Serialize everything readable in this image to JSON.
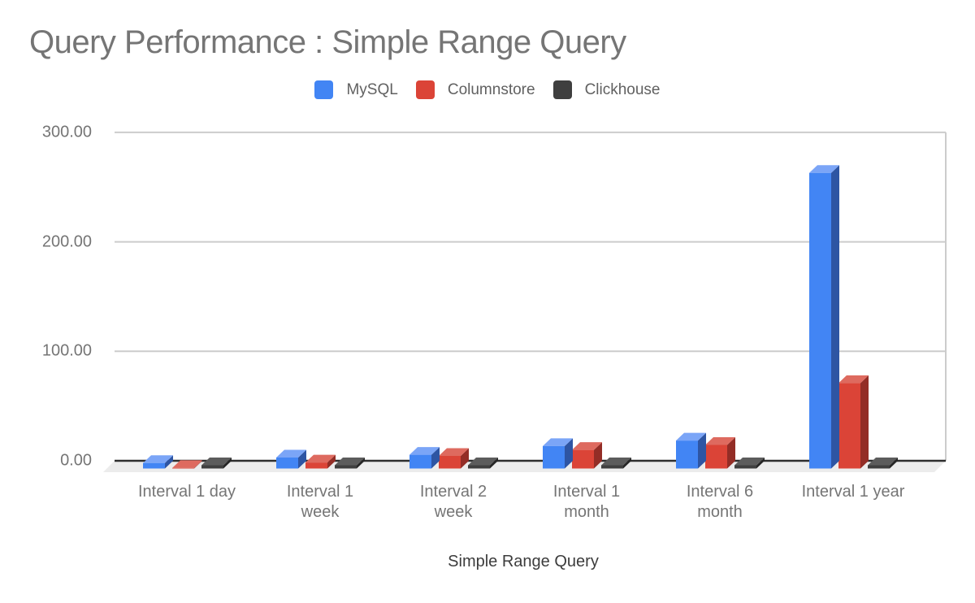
{
  "chart_data": {
    "type": "bar",
    "style": "3d-column",
    "title": "Query Performance : Simple Range Query",
    "xlabel": "Simple Range Query",
    "ylabel": "",
    "categories": [
      "Interval 1 day",
      "Interval 1 week",
      "Interval 2 week",
      "Interval 1 month",
      "Interval 6 month",
      "Interval 1 year"
    ],
    "category_label_lines": [
      [
        "Interval 1 day"
      ],
      [
        "Interval 1",
        "week"
      ],
      [
        "Interval 2",
        "week"
      ],
      [
        "Interval 1",
        "month"
      ],
      [
        "Interval 6",
        "month"
      ],
      [
        "Interval 1 year"
      ]
    ],
    "series": [
      {
        "name": "MySQL",
        "color": "#4285f4",
        "color_top": "#7ba5f7",
        "color_side": "#2e55a3",
        "values": [
          5,
          10,
          12.5,
          20.5,
          25.5,
          270
        ]
      },
      {
        "name": "Columnstore",
        "color": "#db4437",
        "color_top": "#de6a5f",
        "color_side": "#932d26",
        "values": [
          0.5,
          5.5,
          11.5,
          17,
          21.5,
          78
        ]
      },
      {
        "name": "Clickhouse",
        "color": "#3f3f3f",
        "color_top": "#5c5c5c",
        "color_side": "#262626",
        "values": [
          3,
          3,
          3,
          3,
          3,
          3
        ]
      }
    ],
    "ylim": [
      0,
      300
    ],
    "yticks": [
      0,
      100,
      200,
      300
    ],
    "ytick_labels": [
      "0.00",
      "100.00",
      "200.00",
      "300.00"
    ],
    "grid": true,
    "legend_position": "top-center",
    "background_color": "#ffffff",
    "gridline_color": "#cccccc",
    "axis_line_color": "#2e2e2e",
    "floor_color": "#ececec",
    "text_colors": {
      "title": "#757575",
      "ticks": "#757575",
      "legend": "#616161",
      "axis_title": "#3c3c3c"
    }
  }
}
